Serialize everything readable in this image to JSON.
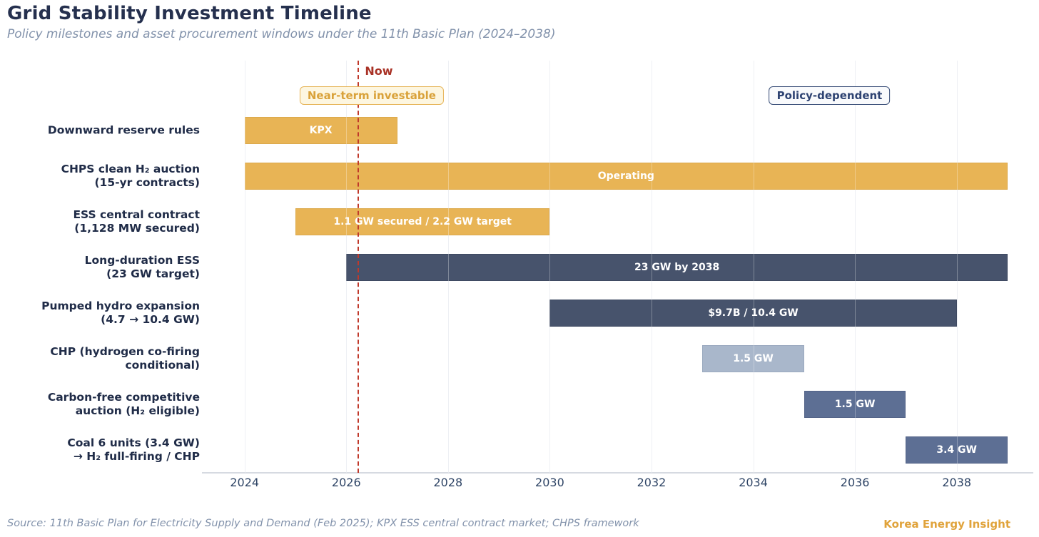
{
  "chart_data": {
    "type": "gantt",
    "title": "Grid Stability Investment Timeline",
    "subtitle": "Policy milestones and asset procurement windows under the 11th Basic Plan (2024–2038)",
    "source": "Source: 11th Basic Plan for Electricity Supply and Demand (Feb 2025); KPX ESS central contract market; CHPS framework",
    "brand": "Korea Energy Insight",
    "x_axis": {
      "ticks": [
        2024,
        2026,
        2028,
        2030,
        2032,
        2034,
        2036,
        2038
      ],
      "range": [
        2023.4,
        2039.5
      ],
      "grid": true
    },
    "now_marker": {
      "label": "Now",
      "year": 2026.24
    },
    "badges": [
      {
        "label": "Near-term investable",
        "center_year": 2026.5,
        "style": "amber",
        "name": "badge-near-term-investable"
      },
      {
        "label": "Policy-dependent",
        "center_year": 2035.5,
        "style": "navy",
        "name": "badge-policy-dependent"
      }
    ],
    "rows": [
      {
        "label_lines": [
          "Downward reserve rules"
        ],
        "start": 2024,
        "end": 2027,
        "bar_label": "KPX",
        "color": "amber"
      },
      {
        "label_lines": [
          "CHPS clean H₂ auction",
          "(15-yr contracts)"
        ],
        "start": 2024,
        "end": 2039,
        "bar_label": "Operating",
        "color": "amber"
      },
      {
        "label_lines": [
          "ESS central contract",
          "(1,128 MW secured)"
        ],
        "start": 2025,
        "end": 2030,
        "bar_label": "1.1 GW secured / 2.2 GW target",
        "color": "amber"
      },
      {
        "label_lines": [
          "Long-duration ESS",
          "(23 GW target)"
        ],
        "start": 2026,
        "end": 2039,
        "bar_label": "23 GW by 2038",
        "color": "dark"
      },
      {
        "label_lines": [
          "Pumped hydro expansion",
          "(4.7 → 10.4 GW)"
        ],
        "start": 2030,
        "end": 2038,
        "bar_label": "$9.7B / 10.4 GW",
        "color": "dark"
      },
      {
        "label_lines": [
          "CHP (hydrogen co-firing",
          "conditional)"
        ],
        "start": 2033,
        "end": 2035,
        "bar_label": "1.5 GW",
        "color": "light"
      },
      {
        "label_lines": [
          "Carbon-free competitive",
          "auction (H₂ eligible)"
        ],
        "start": 2035,
        "end": 2037,
        "bar_label": "1.5 GW",
        "color": "medium"
      },
      {
        "label_lines": [
          "Coal 6 units (3.4 GW)",
          "→ H₂ full-firing / CHP"
        ],
        "start": 2037,
        "end": 2039,
        "bar_label": "3.4 GW",
        "color": "medium"
      }
    ],
    "colors": {
      "amber": "#e8b455",
      "amber_border": "#dca94b",
      "dark": "#47536c",
      "dark_border": "#3e4961",
      "light": "#a9b7cb",
      "light_border": "#9aa9bf",
      "medium": "#5d6f94",
      "medium_border": "#546488",
      "now_line": "#c0392b",
      "now_text": "#a93226",
      "title_text": "#25304e",
      "subtitle_text": "#8292ab",
      "axis_text": "#2f4566",
      "brand_text": "#e0a33b"
    }
  }
}
